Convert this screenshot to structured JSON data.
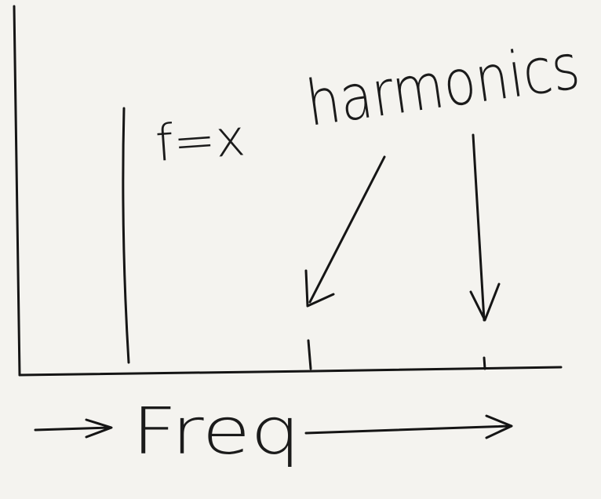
{
  "annotations": {
    "fundamental": "f=x",
    "harmonics": "harmonics"
  },
  "axis": {
    "label": "Freq"
  }
}
